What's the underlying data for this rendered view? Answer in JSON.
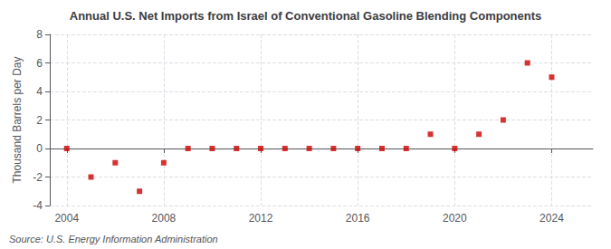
{
  "chart_data": {
    "type": "scatter",
    "title": "Annual U.S. Net Imports from Israel of Conventional Gasoline Blending Components",
    "ylabel": "Thousand Barrels per Day",
    "annotation": "Source: U.S. Energy Information Administration",
    "x": [
      2004,
      2005,
      2006,
      2007,
      2008,
      2009,
      2010,
      2011,
      2012,
      2013,
      2014,
      2015,
      2016,
      2017,
      2018,
      2019,
      2020,
      2021,
      2022,
      2023,
      2024
    ],
    "values": [
      0,
      -2,
      -1,
      -3,
      -1,
      0,
      0,
      0,
      0,
      0,
      0,
      0,
      0,
      0,
      0,
      1,
      0,
      1,
      2,
      6,
      5
    ],
    "color": "#cc0000",
    "marker": "square",
    "xlim": [
      2003.3,
      2025.7
    ],
    "xticks": [
      2004,
      2008,
      2012,
      2016,
      2020,
      2024
    ],
    "ylim": [
      -4,
      8
    ],
    "yticks": [
      -4,
      -2,
      0,
      2,
      4,
      6,
      8
    ],
    "grid": true
  }
}
